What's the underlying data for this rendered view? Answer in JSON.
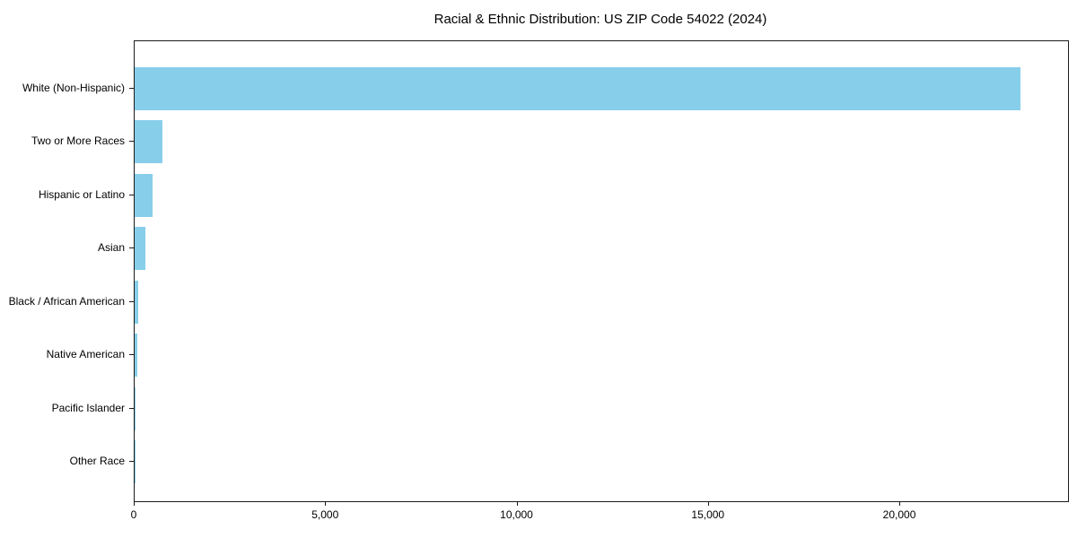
{
  "chart_data": {
    "type": "bar",
    "orientation": "horizontal",
    "title": "Racial & Ethnic Distribution: US ZIP Code 54022 (2024)",
    "categories": [
      "White (Non-Hispanic)",
      "Two or More Races",
      "Hispanic or Latino",
      "Asian",
      "Black / African American",
      "Native American",
      "Pacific Islander",
      "Other Race"
    ],
    "values": [
      23150,
      730,
      460,
      275,
      100,
      75,
      15,
      10
    ],
    "xlabel": "",
    "ylabel": "",
    "xlim": [
      0,
      24384
    ],
    "xticks": [
      0,
      5000,
      10000,
      15000,
      20000
    ],
    "xtick_labels": [
      "0",
      "5,000",
      "10,000",
      "15,000",
      "20,000"
    ],
    "bar_color": "#87ceeb",
    "spine_color": "#1a1a1a",
    "grid": false,
    "legend": null
  }
}
